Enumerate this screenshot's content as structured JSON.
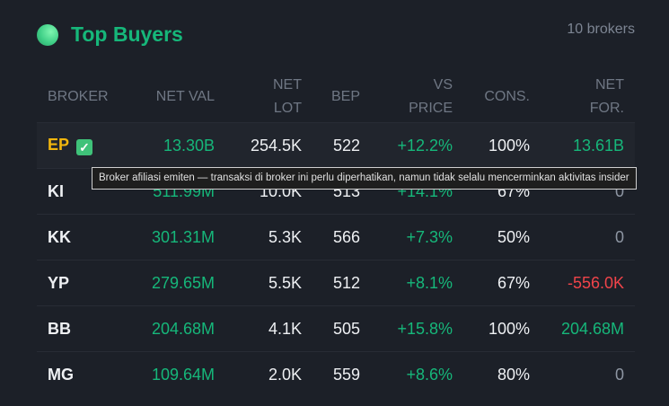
{
  "header": {
    "title": "Top Buyers",
    "count": "10 brokers",
    "orb_icon": "green-orb-icon"
  },
  "columns": [
    {
      "line1": "BROKER",
      "line2": ""
    },
    {
      "line1": "NET VAL",
      "line2": ""
    },
    {
      "line1": "NET",
      "line2": "LOT"
    },
    {
      "line1": "BEP",
      "line2": ""
    },
    {
      "line1": "VS",
      "line2": "PRICE"
    },
    {
      "line1": "CONS.",
      "line2": ""
    },
    {
      "line1": "NET",
      "line2": "FOR."
    }
  ],
  "rows": [
    {
      "broker": "EP",
      "affiliated": true,
      "net_val": "13.30B",
      "net_lot": "254.5K",
      "bep": "522",
      "vs_price": "+12.2%",
      "cons": "100%",
      "net_for": "13.61B",
      "net_for_sign": "pos"
    },
    {
      "broker": "KI",
      "net_val": "511.99M",
      "net_lot": "10.0K",
      "bep": "513",
      "vs_price": "+14.1%",
      "cons": "67%",
      "net_for": "0",
      "net_for_sign": "zero"
    },
    {
      "broker": "KK",
      "net_val": "301.31M",
      "net_lot": "5.3K",
      "bep": "566",
      "vs_price": "+7.3%",
      "cons": "50%",
      "net_for": "0",
      "net_for_sign": "zero"
    },
    {
      "broker": "YP",
      "net_val": "279.65M",
      "net_lot": "5.5K",
      "bep": "512",
      "vs_price": "+8.1%",
      "cons": "67%",
      "net_for": "-556.0K",
      "net_for_sign": "neg"
    },
    {
      "broker": "BB",
      "net_val": "204.68M",
      "net_lot": "4.1K",
      "bep": "505",
      "vs_price": "+15.8%",
      "cons": "100%",
      "net_for": "204.68M",
      "net_for_sign": "pos"
    },
    {
      "broker": "MG",
      "net_val": "109.64M",
      "net_lot": "2.0K",
      "bep": "559",
      "vs_price": "+8.6%",
      "cons": "80%",
      "net_for": "0",
      "net_for_sign": "zero"
    }
  ],
  "tooltip": "Broker afiliasi emiten — transaksi di broker ini perlu diperhatikan, namun tidak selalu mencerminkan aktivitas insider",
  "colors": {
    "positive": "#16b77a",
    "negative": "#f0444a",
    "affiliated": "#f2b60d",
    "background": "#1c2028"
  }
}
